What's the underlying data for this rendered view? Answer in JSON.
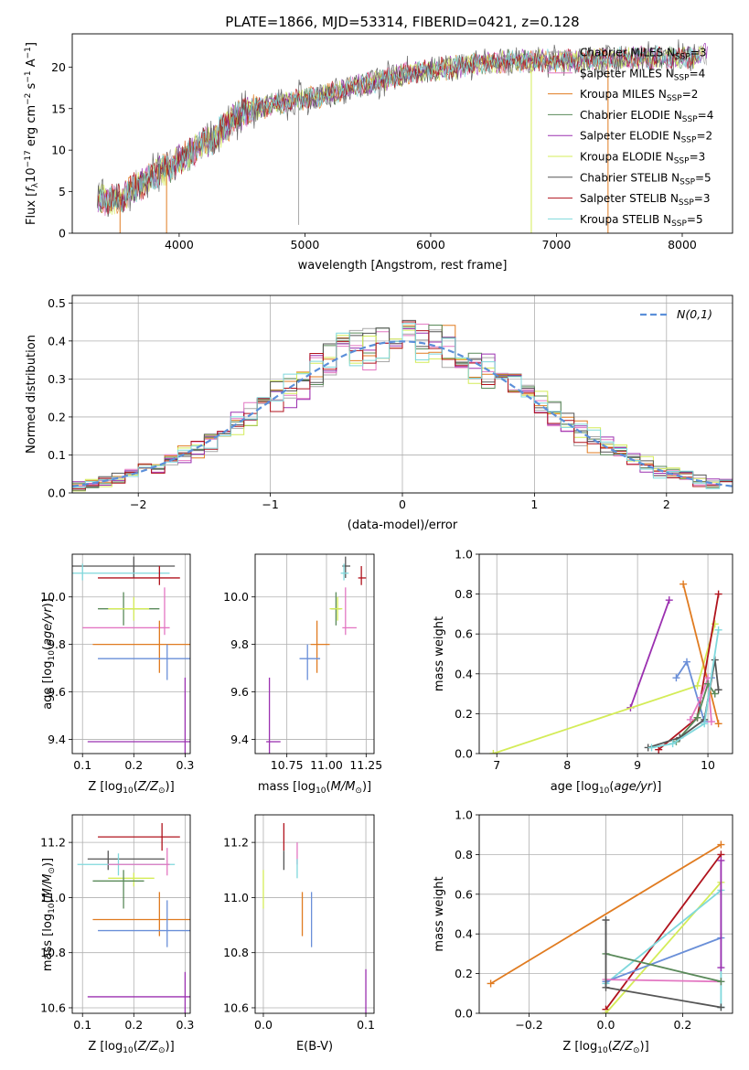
{
  "figure": {
    "title": "PLATE=1866, MJD=53314, FIBERID=0421, z=0.128"
  },
  "series_styles": [
    {
      "name": "Chabrier MILES",
      "nssp": "3",
      "color": "#a9a9a9"
    },
    {
      "name": "Salpeter MILES",
      "nssp": "4",
      "color": "#e377c2"
    },
    {
      "name": "Kroupa MILES",
      "nssp": "2",
      "color": "#e07b20"
    },
    {
      "name": "Chabrier ELODIE",
      "nssp": "4",
      "color": "#5a8a5a"
    },
    {
      "name": "Salpeter ELODIE",
      "nssp": "2",
      "color": "#9b30b0"
    },
    {
      "name": "Kroupa ELODIE",
      "nssp": "3",
      "color": "#d4ec58"
    },
    {
      "name": "Chabrier STELIB",
      "nssp": "5",
      "color": "#555555"
    },
    {
      "name": "Salpeter STELIB",
      "nssp": "3",
      "color": "#b0131d"
    },
    {
      "name": "Kroupa STELIB",
      "nssp": "5",
      "color": "#7fd8dc"
    }
  ],
  "chart_data": [
    {
      "id": "spectrum",
      "type": "line",
      "xlabel": "wavelength [Angstrom, rest frame]",
      "ylabel": "Flux [f_λ10^-17 erg cm^-2 s^-1 A^-1]",
      "xlim": [
        3150,
        8400
      ],
      "ylim": [
        0,
        24
      ],
      "xticks": [
        4000,
        5000,
        6000,
        7000,
        8000
      ],
      "yticks": [
        0,
        5,
        10,
        15,
        20
      ],
      "grid": false,
      "legend": "top-right",
      "continuum": {
        "x": [
          3350,
          3450,
          3550,
          3650,
          3750,
          3850,
          3950,
          4050,
          4150,
          4250,
          4350,
          4450,
          4600,
          4800,
          5000,
          5200,
          5400,
          5600,
          5800,
          6000,
          6200,
          6400,
          6600,
          6800,
          7000,
          7200,
          7400,
          7600,
          7800,
          8000,
          8200
        ],
        "y": [
          4.2,
          4.0,
          4.3,
          5.5,
          6.5,
          7.5,
          8.2,
          9.2,
          10.3,
          11.2,
          12.5,
          14.0,
          15.0,
          15.6,
          16.2,
          16.7,
          17.8,
          18.3,
          19.2,
          19.6,
          20.0,
          20.4,
          20.7,
          20.7,
          20.8,
          20.8,
          21.0,
          21.0,
          21.1,
          21.2,
          21.4
        ]
      },
      "features": [
        {
          "x": 4950,
          "y": 1.0,
          "note": "spike"
        },
        {
          "x": 6800,
          "y": 0.0,
          "note": "drop"
        },
        {
          "x": 7410,
          "y": 0.0,
          "note": "drop"
        },
        {
          "x": 3530,
          "y": 0.0,
          "note": "drop"
        },
        {
          "x": 3900,
          "y": 0.0,
          "note": "drop"
        }
      ]
    },
    {
      "id": "residuals",
      "type": "histogram",
      "xlabel": "(data-model)/error",
      "ylabel": "Normed distribution",
      "xlim": [
        -2.5,
        2.5
      ],
      "ylim": [
        0,
        0.52
      ],
      "xticks": [
        -2,
        -1,
        0,
        1,
        2
      ],
      "yticks": [
        0.0,
        0.1,
        0.2,
        0.3,
        0.4,
        0.5
      ],
      "grid": true,
      "legend": "top-right",
      "legend_label": "N(0,1)",
      "bin_width": 0.1
    },
    {
      "id": "age_vs_Z",
      "type": "errorbar",
      "xlabel": "Z [log10(Z/Z⊙)]",
      "ylabel": "age  [log10(age/yr)]",
      "xlim": [
        0.08,
        0.31
      ],
      "ylim": [
        9.34,
        10.18
      ],
      "xticks": [
        0.1,
        0.2,
        0.3
      ],
      "yticks": [
        9.4,
        9.6,
        9.8,
        10.0
      ],
      "grid": true,
      "points": [
        {
          "color": "#555555",
          "x": 0.2,
          "xerr": [
            0.08,
            0.28
          ],
          "y": 10.13,
          "yerr": [
            10.08,
            10.17
          ]
        },
        {
          "color": "#7fd8dc",
          "x": 0.1,
          "xerr": [
            0.08,
            0.27
          ],
          "y": 10.1,
          "yerr": [
            10.07,
            10.14
          ]
        },
        {
          "color": "#b0131d",
          "x": 0.25,
          "xerr": [
            0.13,
            0.29
          ],
          "y": 10.08,
          "yerr": [
            10.05,
            10.13
          ]
        },
        {
          "color": "#5a8a5a",
          "x": 0.18,
          "xerr": [
            0.13,
            0.25
          ],
          "y": 9.95,
          "yerr": [
            9.88,
            10.02
          ]
        },
        {
          "color": "#d4ec58",
          "x": 0.2,
          "xerr": [
            0.15,
            0.23
          ],
          "y": 9.95,
          "yerr": [
            9.9,
            10.0
          ]
        },
        {
          "color": "#e377c2",
          "x": 0.26,
          "xerr": [
            0.1,
            0.27
          ],
          "y": 9.87,
          "yerr": [
            9.84,
            10.04
          ]
        },
        {
          "color": "#e07b20",
          "x": 0.25,
          "xerr": [
            0.12,
            0.31
          ],
          "y": 9.8,
          "yerr": [
            9.68,
            9.9
          ]
        },
        {
          "color": "#6a8fd8",
          "x": 0.265,
          "xerr": [
            0.13,
            0.31
          ],
          "y": 9.74,
          "yerr": [
            9.65,
            9.8
          ]
        },
        {
          "color": "#9b30b0",
          "x": 0.3,
          "xerr": [
            0.11,
            0.31
          ],
          "y": 9.39,
          "yerr": [
            9.34,
            9.66
          ]
        }
      ]
    },
    {
      "id": "age_vs_mass",
      "type": "errorbar",
      "xlabel": "mass [log10(M/M⊙)]",
      "ylabel": "",
      "xlim": [
        10.55,
        11.3
      ],
      "ylim": [
        9.34,
        10.18
      ],
      "xticks": [
        10.75,
        11.0,
        11.25
      ],
      "yticks": [
        9.4,
        9.6,
        9.8,
        10.0
      ],
      "grid": true,
      "points": [
        {
          "color": "#555555",
          "x": 11.12,
          "xerr": [
            11.1,
            11.15
          ],
          "y": 10.13,
          "yerr": [
            10.08,
            10.17
          ]
        },
        {
          "color": "#7fd8dc",
          "x": 11.11,
          "xerr": [
            11.09,
            11.14
          ],
          "y": 10.1,
          "yerr": [
            10.07,
            10.14
          ]
        },
        {
          "color": "#b0131d",
          "x": 11.22,
          "xerr": [
            11.2,
            11.25
          ],
          "y": 10.08,
          "yerr": [
            10.05,
            10.13
          ]
        },
        {
          "color": "#5a8a5a",
          "x": 11.06,
          "xerr": [
            11.03,
            11.09
          ],
          "y": 9.95,
          "yerr": [
            9.88,
            10.02
          ]
        },
        {
          "color": "#d4ec58",
          "x": 11.07,
          "xerr": [
            11.02,
            11.1
          ],
          "y": 9.95,
          "yerr": [
            9.9,
            10.0
          ]
        },
        {
          "color": "#e377c2",
          "x": 11.12,
          "xerr": [
            11.1,
            11.19
          ],
          "y": 9.87,
          "yerr": [
            9.84,
            10.04
          ]
        },
        {
          "color": "#e07b20",
          "x": 10.94,
          "xerr": [
            10.9,
            11.02
          ],
          "y": 9.8,
          "yerr": [
            9.68,
            9.9
          ]
        },
        {
          "color": "#6a8fd8",
          "x": 10.88,
          "xerr": [
            10.83,
            10.96
          ],
          "y": 9.74,
          "yerr": [
            9.65,
            9.8
          ]
        },
        {
          "color": "#9b30b0",
          "x": 10.64,
          "xerr": [
            10.62,
            10.71
          ],
          "y": 9.39,
          "yerr": [
            9.34,
            9.66
          ]
        }
      ]
    },
    {
      "id": "weight_vs_age",
      "type": "line",
      "xlabel": "age  [log10(age/yr)]",
      "ylabel": "mass weight",
      "xlim": [
        6.75,
        10.35
      ],
      "ylim": [
        0,
        1.0
      ],
      "xticks": [
        7,
        8,
        9,
        10
      ],
      "yticks": [
        0.0,
        0.2,
        0.4,
        0.6,
        0.8,
        1.0
      ],
      "grid": true,
      "series": [
        {
          "color": "#9b30b0",
          "x": [
            8.9,
            9.45
          ],
          "y": [
            0.23,
            0.77
          ]
        },
        {
          "color": "#d4ec58",
          "x": [
            6.95,
            9.85,
            10.1
          ],
          "y": [
            0.0,
            0.34,
            0.65
          ]
        },
        {
          "color": "#e07b20",
          "x": [
            9.65,
            10.15
          ],
          "y": [
            0.85,
            0.15
          ]
        },
        {
          "color": "#b0131d",
          "x": [
            9.3,
            9.85,
            10.15
          ],
          "y": [
            0.02,
            0.18,
            0.8
          ]
        },
        {
          "color": "#6a8fd8",
          "x": [
            9.55,
            9.7,
            9.95,
            10.05
          ],
          "y": [
            0.38,
            0.46,
            0.16,
            0.38
          ]
        },
        {
          "color": "#e377c2",
          "x": [
            9.75,
            9.9,
            10.0,
            10.05
          ],
          "y": [
            0.17,
            0.28,
            0.38,
            0.16
          ]
        },
        {
          "color": "#5a8a5a",
          "x": [
            9.55,
            9.85,
            10.0,
            10.1
          ],
          "y": [
            0.06,
            0.18,
            0.35,
            0.3
          ]
        },
        {
          "color": "#555555",
          "x": [
            9.15,
            9.6,
            9.95,
            10.1,
            10.15
          ],
          "y": [
            0.03,
            0.08,
            0.17,
            0.47,
            0.32
          ]
        },
        {
          "color": "#7fd8dc",
          "x": [
            9.2,
            9.5,
            9.95,
            10.15
          ],
          "y": [
            0.03,
            0.05,
            0.15,
            0.62
          ]
        }
      ]
    },
    {
      "id": "mass_vs_Z",
      "type": "errorbar",
      "xlabel": "Z [log10(Z/Z⊙)]",
      "ylabel": "mass [log10(M/M⊙)]",
      "xlim": [
        0.08,
        0.31
      ],
      "ylim": [
        10.58,
        11.3
      ],
      "xticks": [
        0.1,
        0.2,
        0.3
      ],
      "yticks": [
        10.6,
        10.8,
        11.0,
        11.2
      ],
      "grid": true,
      "points": [
        {
          "color": "#b0131d",
          "x": 0.255,
          "xerr": [
            0.13,
            0.29
          ],
          "y": 11.22,
          "yerr": [
            11.17,
            11.27
          ]
        },
        {
          "color": "#555555",
          "x": 0.15,
          "xerr": [
            0.11,
            0.26
          ],
          "y": 11.14,
          "yerr": [
            11.1,
            11.17
          ]
        },
        {
          "color": "#7fd8dc",
          "x": 0.17,
          "xerr": [
            0.09,
            0.28
          ],
          "y": 11.12,
          "yerr": [
            11.08,
            11.16
          ]
        },
        {
          "color": "#e377c2",
          "x": 0.265,
          "xerr": [
            0.15,
            0.27
          ],
          "y": 11.12,
          "yerr": [
            11.08,
            11.18
          ]
        },
        {
          "color": "#d4ec58",
          "x": 0.2,
          "xerr": [
            0.15,
            0.24
          ],
          "y": 11.07,
          "yerr": [
            11.04,
            11.09
          ]
        },
        {
          "color": "#5a8a5a",
          "x": 0.18,
          "xerr": [
            0.12,
            0.22
          ],
          "y": 11.06,
          "yerr": [
            10.96,
            11.1
          ]
        },
        {
          "color": "#e07b20",
          "x": 0.25,
          "xerr": [
            0.12,
            0.31
          ],
          "y": 10.92,
          "yerr": [
            10.86,
            11.02
          ]
        },
        {
          "color": "#6a8fd8",
          "x": 0.265,
          "xerr": [
            0.13,
            0.31
          ],
          "y": 10.88,
          "yerr": [
            10.82,
            10.99
          ]
        },
        {
          "color": "#9b30b0",
          "x": 0.3,
          "xerr": [
            0.11,
            0.31
          ],
          "y": 10.64,
          "yerr": [
            10.58,
            10.73
          ]
        }
      ]
    },
    {
      "id": "mass_vs_EBV",
      "type": "errorbar",
      "xlabel": "E(B-V)",
      "ylabel": "",
      "xlim": [
        -0.008,
        0.108
      ],
      "ylim": [
        10.58,
        11.3
      ],
      "xticks": [
        0.0,
        0.1
      ],
      "yticks": [
        10.6,
        10.8,
        11.0,
        11.2
      ],
      "grid": true,
      "points": [
        {
          "color": "#b0131d",
          "x": 0.02,
          "y": 11.22,
          "yerr": [
            11.17,
            11.27
          ]
        },
        {
          "color": "#555555",
          "x": 0.02,
          "y": 11.14,
          "yerr": [
            11.1,
            11.17
          ]
        },
        {
          "color": "#e377c2",
          "x": 0.033,
          "y": 11.16,
          "yerr": [
            11.12,
            11.2
          ]
        },
        {
          "color": "#7fd8dc",
          "x": 0.033,
          "y": 11.1,
          "yerr": [
            11.07,
            11.14
          ]
        },
        {
          "color": "#d4ec58",
          "x": 0.0,
          "y": 11.03,
          "yerr": [
            10.96,
            11.1
          ]
        },
        {
          "color": "#e07b20",
          "x": 0.038,
          "y": 10.94,
          "yerr": [
            10.86,
            11.02
          ]
        },
        {
          "color": "#6a8fd8",
          "x": 0.047,
          "y": 10.92,
          "yerr": [
            10.82,
            11.02
          ]
        },
        {
          "color": "#9b30b0",
          "x": 0.1,
          "y": 10.66,
          "yerr": [
            10.58,
            10.74
          ]
        }
      ]
    },
    {
      "id": "weight_vs_Z",
      "type": "line",
      "xlabel": "Z [log10(Z/Z⊙)]",
      "ylabel": "mass weight",
      "xlim": [
        -0.33,
        0.33
      ],
      "ylim": [
        0,
        1.0
      ],
      "xticks": [
        -0.2,
        0.0,
        0.2
      ],
      "yticks": [
        0.0,
        0.2,
        0.4,
        0.6,
        0.8,
        1.0
      ],
      "grid": true,
      "series": [
        {
          "color": "#e07b20",
          "x": [
            -0.3,
            0.3
          ],
          "y": [
            0.15,
            0.85
          ]
        },
        {
          "color": "#b0131d",
          "x": [
            0.0,
            0.3
          ],
          "y": [
            0.02,
            0.8
          ]
        },
        {
          "color": "#d4ec58",
          "x": [
            0.0,
            0.3
          ],
          "y": [
            0.0,
            0.66
          ]
        },
        {
          "color": "#7fd8dc",
          "x": [
            0.0,
            0.3,
            0.3
          ],
          "y": [
            0.15,
            0.62,
            0.03
          ]
        },
        {
          "color": "#6a8fd8",
          "x": [
            0.0,
            0.3
          ],
          "y": [
            0.16,
            0.38
          ]
        },
        {
          "color": "#e377c2",
          "x": [
            0.0,
            0.3
          ],
          "y": [
            0.17,
            0.16
          ]
        },
        {
          "color": "#5a8a5a",
          "x": [
            0.0,
            0.3
          ],
          "y": [
            0.3,
            0.16
          ]
        },
        {
          "color": "#555555",
          "x": [
            0.0,
            0.0,
            0.3
          ],
          "y": [
            0.47,
            0.13,
            0.03
          ]
        },
        {
          "color": "#9b30b0",
          "x": [
            0.3,
            0.3
          ],
          "y": [
            0.77,
            0.23
          ]
        }
      ]
    }
  ]
}
